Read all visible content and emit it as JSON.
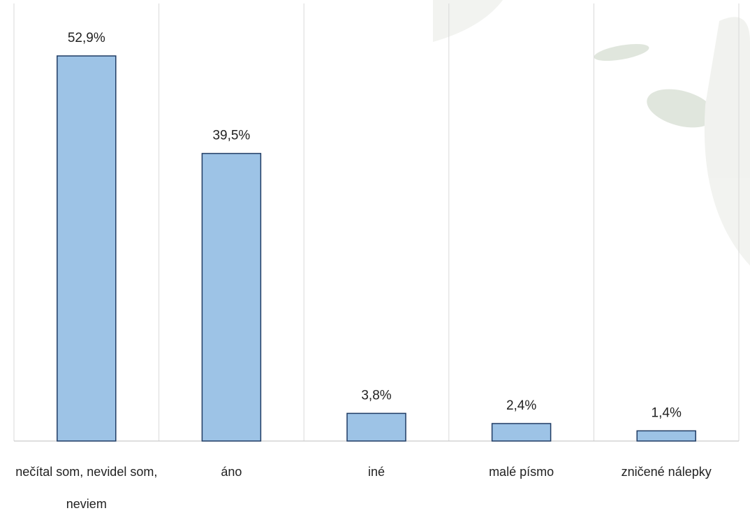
{
  "chart_data": {
    "type": "bar",
    "categories": [
      "nečítal som, nevidel som, neviem",
      "áno",
      "iné",
      "malé písmo",
      "zničené nálepky"
    ],
    "values": [
      52.9,
      39.5,
      3.8,
      2.4,
      1.4
    ],
    "value_labels": [
      "52,9%",
      "39,5%",
      "3,8%",
      "2,4%",
      "1,4%"
    ],
    "color": "#9dc3e6"
  }
}
